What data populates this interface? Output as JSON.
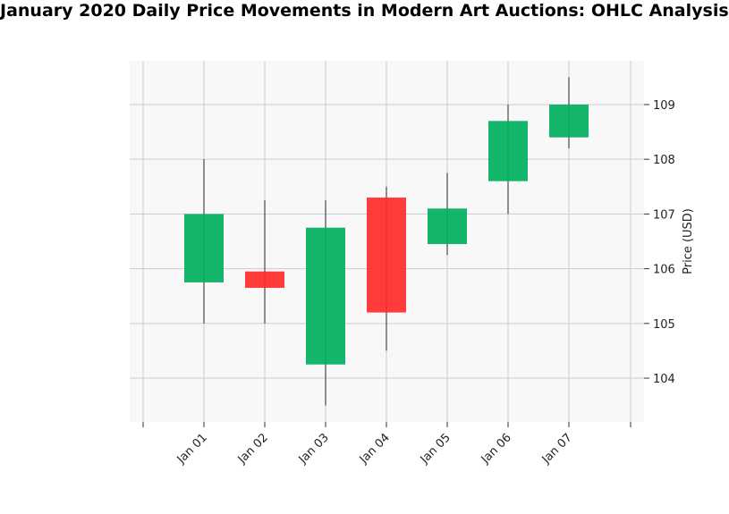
{
  "chart_data": {
    "type": "candlestick",
    "title": "January 2020 Daily Price Movements in Modern Art Auctions: OHLC Analysis",
    "ylabel": "Price (USD)",
    "xlabel": "",
    "ylim": [
      103.2,
      109.8
    ],
    "yticks": [
      104,
      105,
      106,
      107,
      108,
      109
    ],
    "grid": true,
    "categories": [
      "Jan 01",
      "Jan 02",
      "Jan 03",
      "Jan 04",
      "Jan 05",
      "Jan 06",
      "Jan 07"
    ],
    "ohlc": [
      {
        "date": "Jan 01",
        "open": 105.75,
        "high": 108.0,
        "low": 105.0,
        "close": 107.0
      },
      {
        "date": "Jan 02",
        "open": 105.95,
        "high": 107.25,
        "low": 105.0,
        "close": 105.65
      },
      {
        "date": "Jan 03",
        "open": 104.25,
        "high": 107.25,
        "low": 103.5,
        "close": 106.75
      },
      {
        "date": "Jan 04",
        "open": 107.3,
        "high": 107.5,
        "low": 104.5,
        "close": 105.2
      },
      {
        "date": "Jan 05",
        "open": 106.45,
        "high": 107.75,
        "low": 106.25,
        "close": 107.1
      },
      {
        "date": "Jan 06",
        "open": 107.6,
        "high": 109.0,
        "low": 107.0,
        "close": 108.7
      },
      {
        "date": "Jan 07",
        "open": 108.4,
        "high": 109.5,
        "low": 108.2,
        "close": 109.0
      }
    ],
    "colors": {
      "up": "#00b060",
      "down": "#ff2a2a",
      "wick": "#555555",
      "plot_bg": "#f8f8f8",
      "grid": "#cccccc"
    }
  }
}
